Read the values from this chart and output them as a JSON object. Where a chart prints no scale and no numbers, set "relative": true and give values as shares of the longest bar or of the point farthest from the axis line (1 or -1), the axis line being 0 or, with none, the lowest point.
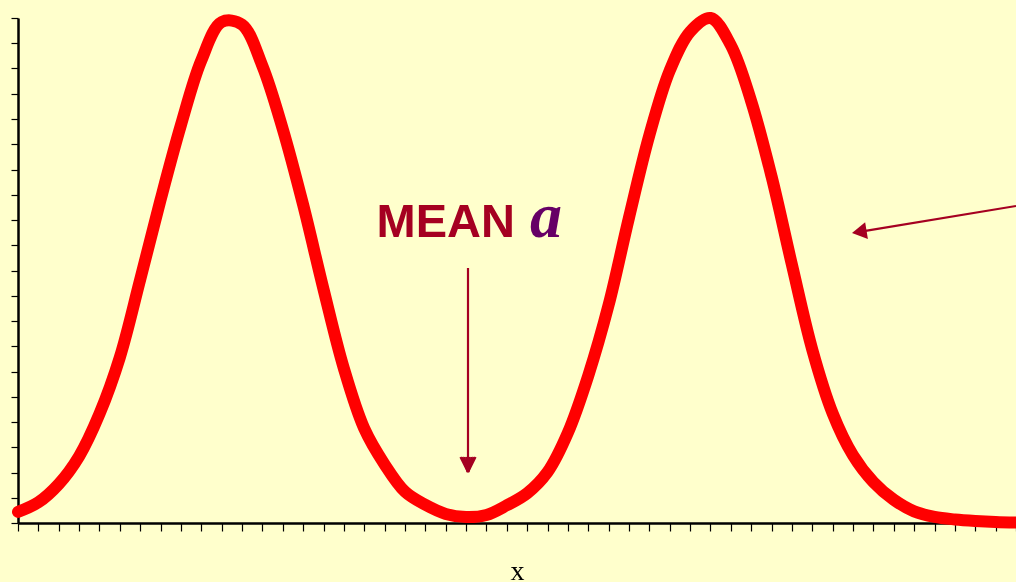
{
  "chart_data": {
    "type": "line",
    "xlabel": "x",
    "relative": true,
    "categories": [
      null,
      null,
      null,
      null,
      null,
      null,
      null,
      null,
      null,
      null,
      null,
      null,
      null,
      null,
      null,
      null,
      null,
      null,
      null,
      null,
      null,
      null,
      null,
      null,
      null,
      null,
      null,
      null,
      null,
      null,
      null,
      null,
      null,
      null,
      null,
      null,
      null,
      null,
      null,
      null,
      null,
      null,
      null,
      null,
      null,
      null,
      null,
      null,
      null,
      null
    ],
    "series": [
      {
        "color": "#ff0000",
        "values": [
          0.022,
          0.041,
          0.077,
          0.132,
          0.216,
          0.328,
          0.482,
          0.64,
          0.788,
          0.916,
          0.992,
          0.987,
          0.905,
          0.78,
          0.63,
          0.463,
          0.306,
          0.187,
          0.116,
          0.062,
          0.036,
          0.018,
          0.012,
          0.016,
          0.035,
          0.059,
          0.101,
          0.179,
          0.292,
          0.432,
          0.605,
          0.768,
          0.896,
          0.973,
          1.0,
          0.946,
          0.835,
          0.686,
          0.511,
          0.343,
          0.217,
          0.134,
          0.081,
          0.046,
          0.023,
          0.012,
          0.007,
          0.004,
          0.002,
          0.001
        ]
      }
    ],
    "annotations": [
      "MEAN a"
    ]
  }
}
